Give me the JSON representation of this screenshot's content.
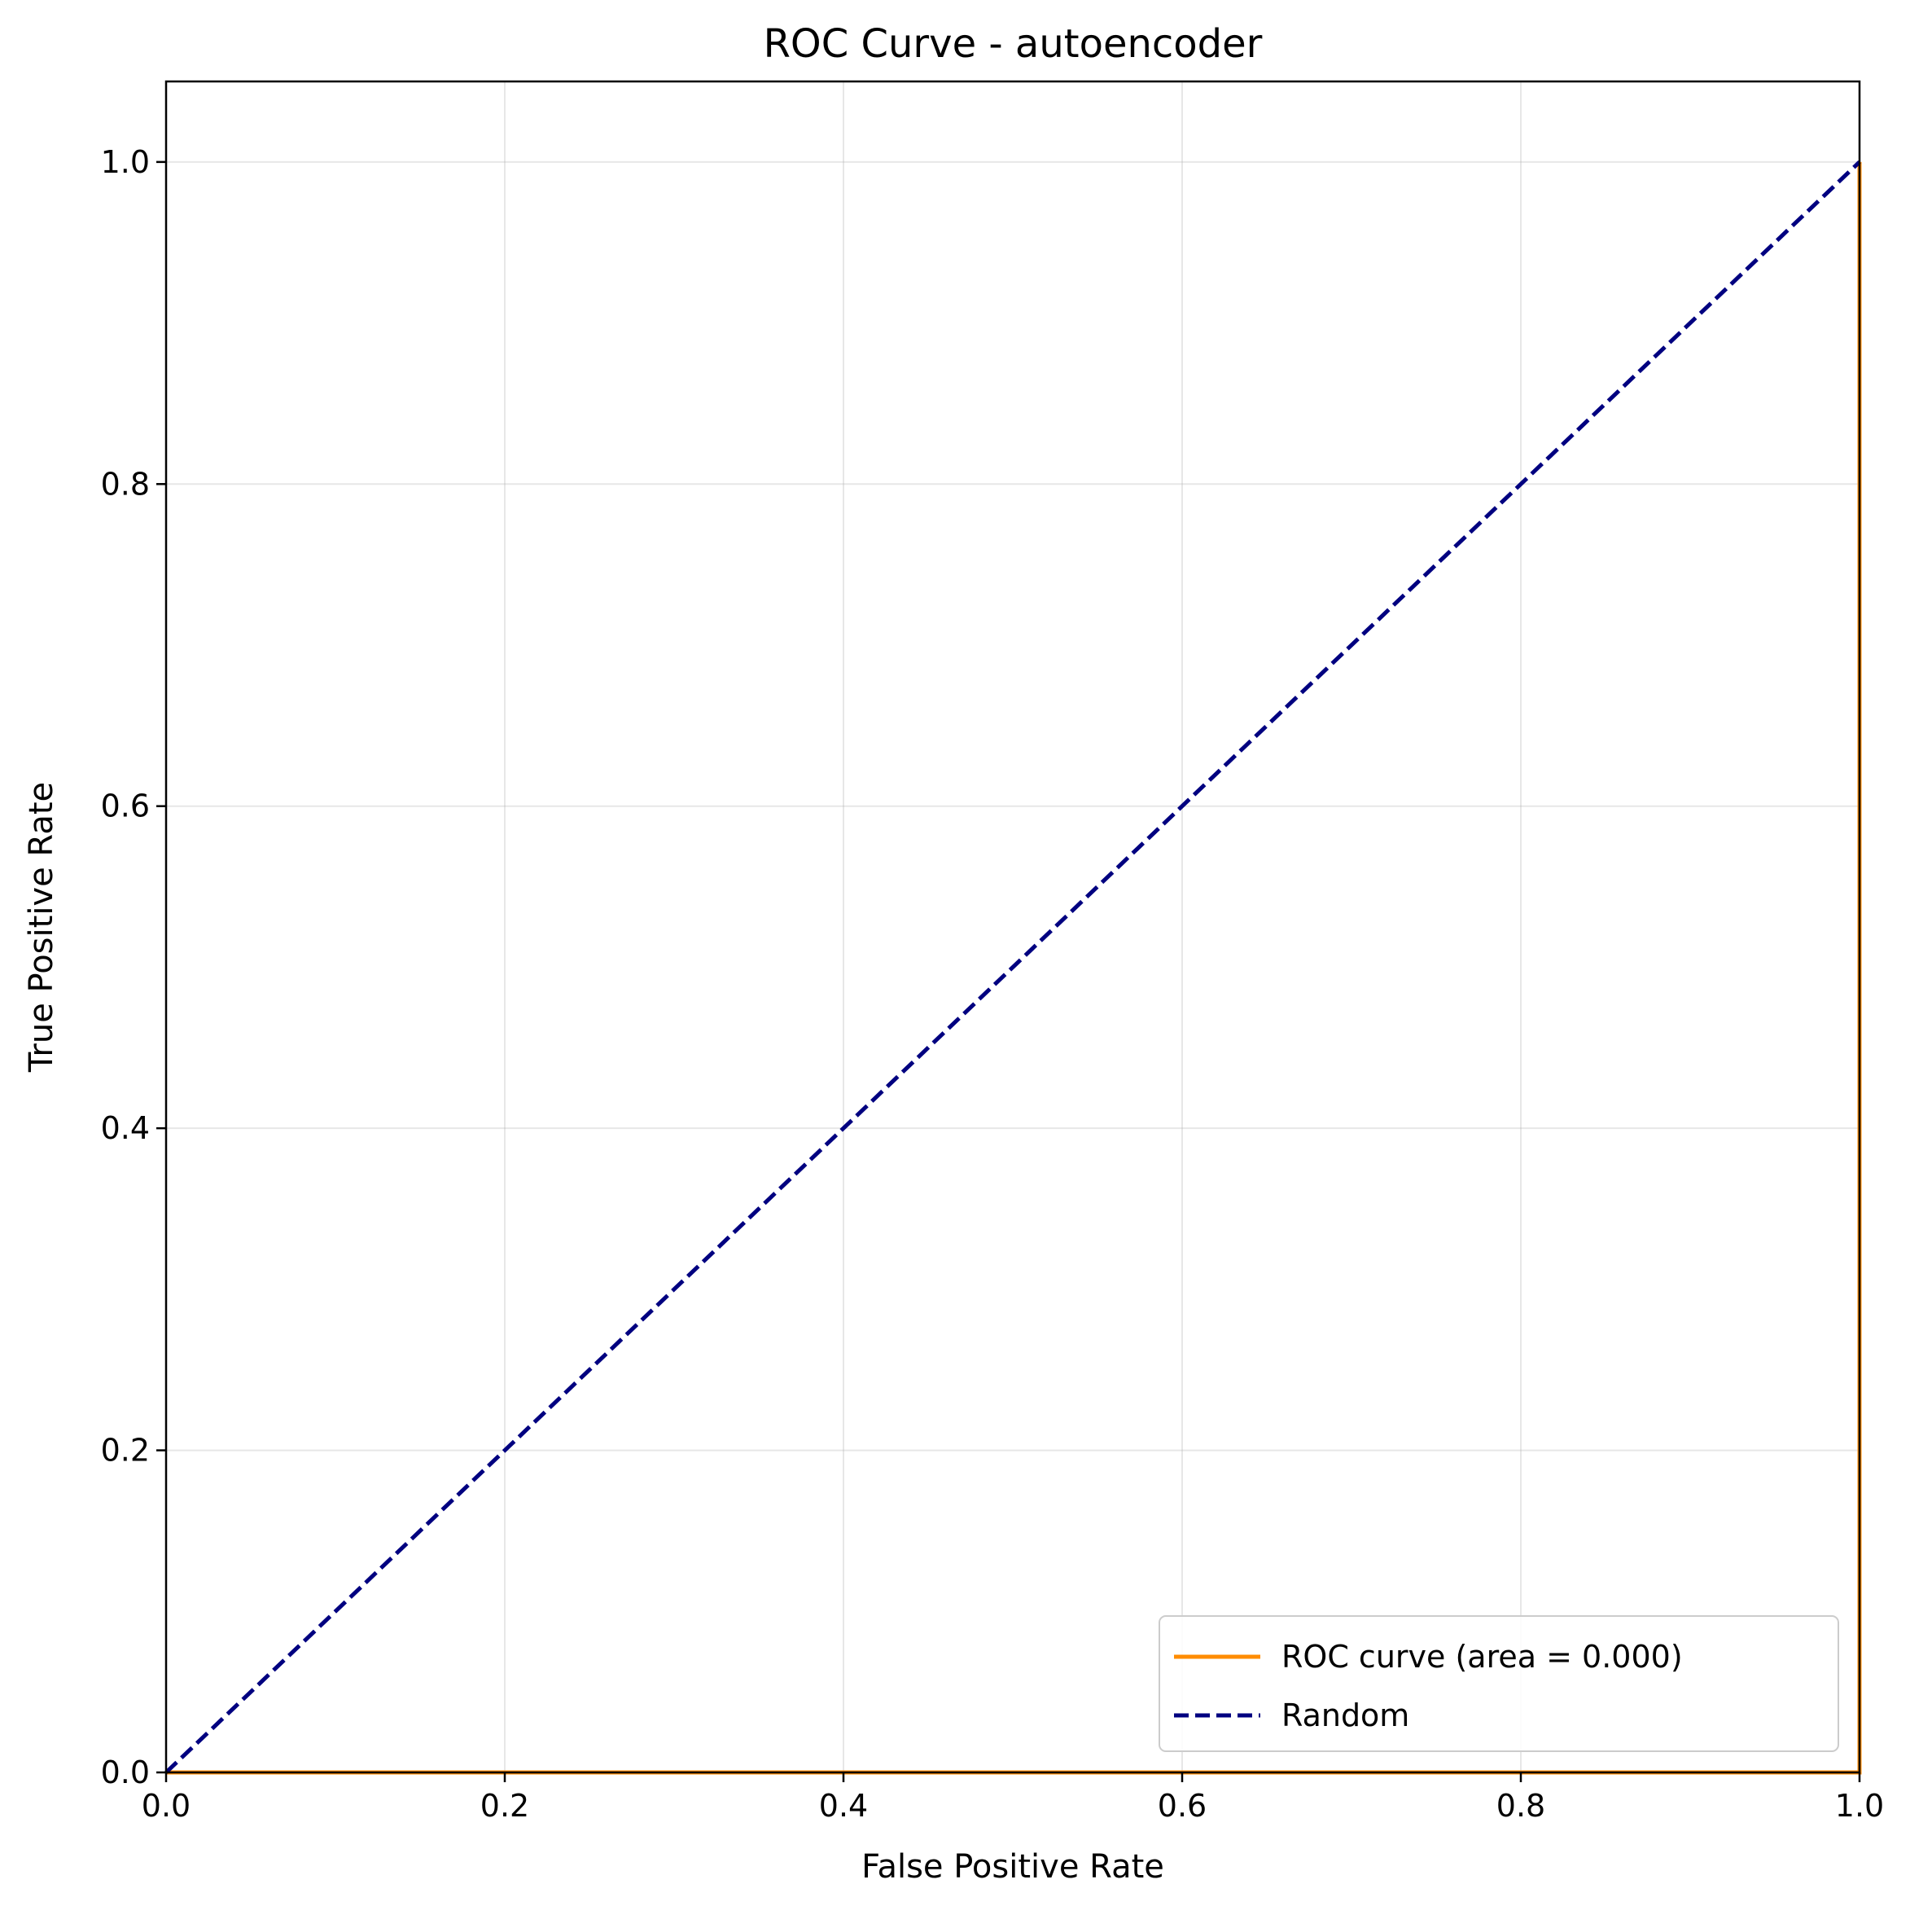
{
  "chart_data": {
    "type": "line",
    "title": "ROC Curve - autoencoder",
    "xlabel": "False Positive Rate",
    "ylabel": "True Positive Rate",
    "xlim": [
      0.0,
      1.0
    ],
    "ylim": [
      0.0,
      1.05
    ],
    "xticks": [
      0.0,
      0.2,
      0.4,
      0.6,
      0.8,
      1.0
    ],
    "yticks": [
      0.0,
      0.2,
      0.4,
      0.6,
      0.8,
      1.0
    ],
    "xtick_labels": [
      "0.0",
      "0.2",
      "0.4",
      "0.6",
      "0.8",
      "1.0"
    ],
    "ytick_labels": [
      "0.0",
      "0.2",
      "0.4",
      "0.6",
      "0.8",
      "1.0"
    ],
    "grid": true,
    "legend_position": "lower-right",
    "series": [
      {
        "name": "ROC curve (area = 0.000)",
        "color": "#ff8c00",
        "style": "solid",
        "x": [
          0.0,
          1.0,
          1.0
        ],
        "y": [
          0.0,
          0.0,
          1.0
        ]
      },
      {
        "name": "Random",
        "color": "#000080",
        "style": "dashed",
        "x": [
          0.0,
          1.0
        ],
        "y": [
          0.0,
          1.0
        ]
      }
    ]
  }
}
